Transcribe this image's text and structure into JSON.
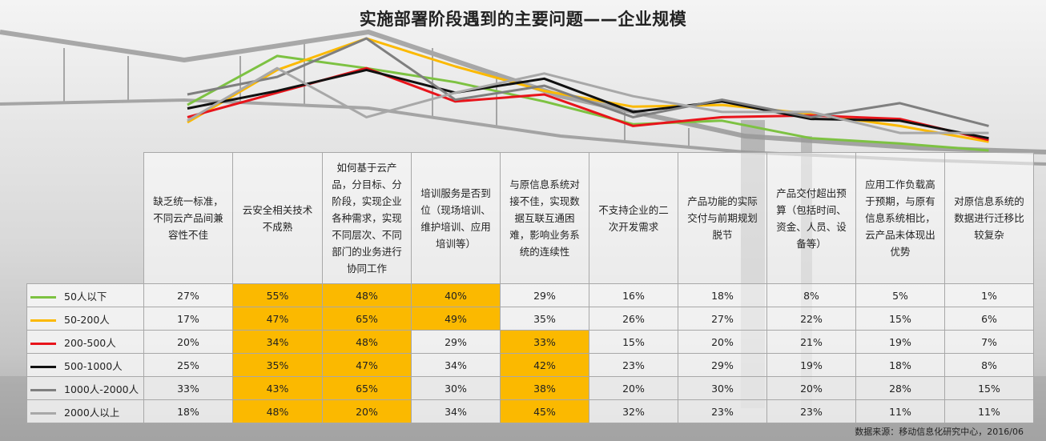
{
  "chart_data": {
    "type": "line",
    "title": "实施部署阶段遇到的主要问题——企业规模",
    "categories": [
      "缺乏统一标准，不同云产品间兼容性不佳",
      "云安全相关技术不成熟",
      "如何基于云产品，分目标、分阶段，实现企业各种需求，实现不同层次、不同部门的业务进行协同工作",
      "培训服务是否到位（现场培训、维护培训、应用培训等）",
      "与原信息系统对接不佳，实现数据互联互通困难，影响业务系统的连续性",
      "不支持企业的二次开发需求",
      "产品功能的实际交付与前期规划脱节",
      "产品交付超出预算（包括时间、资金、人员、设备等）",
      "应用工作负载高于预期，与原有信息系统相比，云产品未体现出优势",
      "对原信息系统的数据进行迁移比较复杂"
    ],
    "series": [
      {
        "name": "50人以下",
        "color": "#7dc242",
        "values": [
          "27%",
          "55%",
          "48%",
          "40%",
          "29%",
          "16%",
          "18%",
          "8%",
          "5%",
          "1%"
        ],
        "highlight": [
          false,
          true,
          true,
          true,
          false,
          false,
          false,
          false,
          false,
          false
        ]
      },
      {
        "name": "50-200人",
        "color": "#fbb900",
        "values": [
          "17%",
          "47%",
          "65%",
          "49%",
          "35%",
          "26%",
          "27%",
          "22%",
          "15%",
          "6%"
        ],
        "highlight": [
          false,
          true,
          true,
          true,
          false,
          false,
          false,
          false,
          false,
          false
        ]
      },
      {
        "name": "200-500人",
        "color": "#e8141b",
        "values": [
          "20%",
          "34%",
          "48%",
          "29%",
          "33%",
          "15%",
          "20%",
          "21%",
          "19%",
          "7%"
        ],
        "highlight": [
          false,
          true,
          true,
          false,
          true,
          false,
          false,
          false,
          false,
          false
        ]
      },
      {
        "name": "500-1000人",
        "color": "#111111",
        "values": [
          "25%",
          "35%",
          "47%",
          "34%",
          "42%",
          "23%",
          "29%",
          "19%",
          "18%",
          "8%"
        ],
        "highlight": [
          false,
          true,
          true,
          false,
          true,
          false,
          false,
          false,
          false,
          false
        ]
      },
      {
        "name": "1000人-2000人",
        "color": "#7f7f7f",
        "values": [
          "33%",
          "43%",
          "65%",
          "30%",
          "38%",
          "20%",
          "30%",
          "20%",
          "28%",
          "15%"
        ],
        "highlight": [
          false,
          true,
          true,
          false,
          true,
          false,
          false,
          false,
          false,
          false
        ]
      },
      {
        "name": "2000人以上",
        "color": "#a8a8a8",
        "values": [
          "18%",
          "48%",
          "20%",
          "34%",
          "45%",
          "32%",
          "23%",
          "23%",
          "11%",
          "11%"
        ],
        "highlight": [
          false,
          true,
          true,
          false,
          true,
          false,
          false,
          false,
          false,
          false
        ]
      }
    ],
    "highlight_color": "#fbb900",
    "source": "数据来源：移动信息化研究中心，2016/06"
  }
}
